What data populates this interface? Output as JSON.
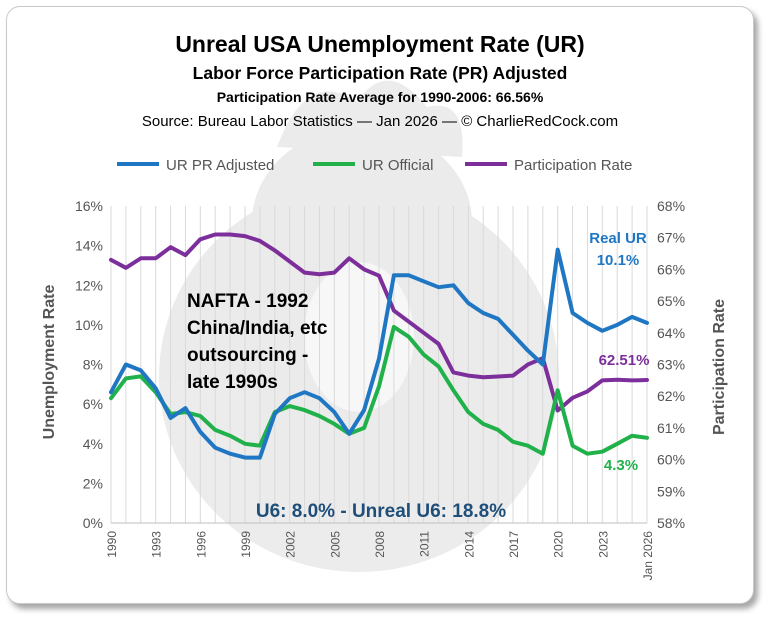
{
  "chart_data": {
    "type": "line",
    "title": "Unreal USA Unemployment Rate (UR)",
    "subtitle": "Labor Force Participation Rate (PR) Adjusted",
    "subtitle2": "Participation Rate Average for 1990-2006: 66.56%",
    "source": "Source: Bureau Labor Statistics — Jan 2026 — © CharlieRedCock.com",
    "ylabel": "Unemployment Rate",
    "y2label": "Participation Rate",
    "ylim": [
      0,
      16
    ],
    "y2lim": [
      58,
      68
    ],
    "grid": "vertical",
    "legend_position": "top",
    "left_ticks": [
      "0%",
      "2%",
      "4%",
      "6%",
      "8%",
      "10%",
      "12%",
      "14%",
      "16%"
    ],
    "right_ticks": [
      "58%",
      "59%",
      "60%",
      "61%",
      "62%",
      "63%",
      "64%",
      "65%",
      "66%",
      "67%",
      "68%"
    ],
    "x_ticks": [
      {
        "label": "1990",
        "x": 1990
      },
      {
        "label": "1993",
        "x": 1993
      },
      {
        "label": "1996",
        "x": 1996
      },
      {
        "label": "1999",
        "x": 1999
      },
      {
        "label": "2002",
        "x": 2002
      },
      {
        "label": "2005",
        "x": 2005
      },
      {
        "label": "2008",
        "x": 2008
      },
      {
        "label": "2011",
        "x": 2011
      },
      {
        "label": "2014",
        "x": 2014
      },
      {
        "label": "2017",
        "x": 2017
      },
      {
        "label": "2020",
        "x": 2020
      },
      {
        "label": "2023",
        "x": 2023
      },
      {
        "label": "Jan 2026",
        "x": 2026
      }
    ],
    "x": [
      1990,
      1991,
      1992,
      1993,
      1994,
      1995,
      1996,
      1997,
      1998,
      1999,
      2000,
      2001,
      2002,
      2003,
      2004,
      2005,
      2006,
      2007,
      2008,
      2009,
      2010,
      2011,
      2012,
      2013,
      2014,
      2015,
      2016,
      2017,
      2018,
      2019,
      2020,
      2021,
      2022,
      2023,
      2024,
      2025,
      2026
    ],
    "series": [
      {
        "name": "UR PR Adjusted",
        "axis": "left",
        "color": "#1f77c4",
        "values": [
          6.6,
          8.0,
          7.7,
          6.8,
          5.3,
          5.8,
          4.6,
          3.8,
          3.5,
          3.3,
          3.3,
          5.5,
          6.3,
          6.6,
          6.3,
          5.6,
          4.5,
          5.7,
          8.3,
          12.5,
          12.5,
          12.2,
          11.9,
          12.0,
          11.1,
          10.6,
          10.3,
          9.5,
          8.7,
          8.0,
          13.8,
          10.6,
          10.1,
          9.7,
          10.0,
          10.4,
          10.1
        ]
      },
      {
        "name": "UR Official",
        "axis": "left",
        "color": "#21b14b",
        "values": [
          6.3,
          7.3,
          7.4,
          6.6,
          5.5,
          5.6,
          5.4,
          4.7,
          4.4,
          4.0,
          3.9,
          5.6,
          5.9,
          5.7,
          5.4,
          5.0,
          4.5,
          4.8,
          6.9,
          9.9,
          9.4,
          8.5,
          7.9,
          6.7,
          5.6,
          5.0,
          4.7,
          4.1,
          3.9,
          3.5,
          6.7,
          3.9,
          3.5,
          3.6,
          4.0,
          4.4,
          4.3
        ]
      },
      {
        "name": "Participation Rate",
        "axis": "right",
        "color": "#7c2f9a",
        "values": [
          66.3,
          66.05,
          66.35,
          66.35,
          66.7,
          66.45,
          66.95,
          67.1,
          67.1,
          67.05,
          66.9,
          66.6,
          66.25,
          65.9,
          65.85,
          65.9,
          66.35,
          66.0,
          65.8,
          64.7,
          64.35,
          64.0,
          63.65,
          62.75,
          62.65,
          62.6,
          62.62,
          62.65,
          63.0,
          63.2,
          61.55,
          61.95,
          62.15,
          62.5,
          62.52,
          62.5,
          62.51
        ]
      }
    ],
    "annotations": {
      "real_ur_label": "Real UR",
      "real_ur_value": "10.1%",
      "participation_value": "62.51%",
      "official_value": "4.3%",
      "nafta_lines": [
        "NAFTA - 1992",
        "China/India, etc",
        "outsourcing -",
        "late 1990s"
      ],
      "u6_text": "U6: 8.0% - Unreal U6: 18.8%"
    }
  }
}
